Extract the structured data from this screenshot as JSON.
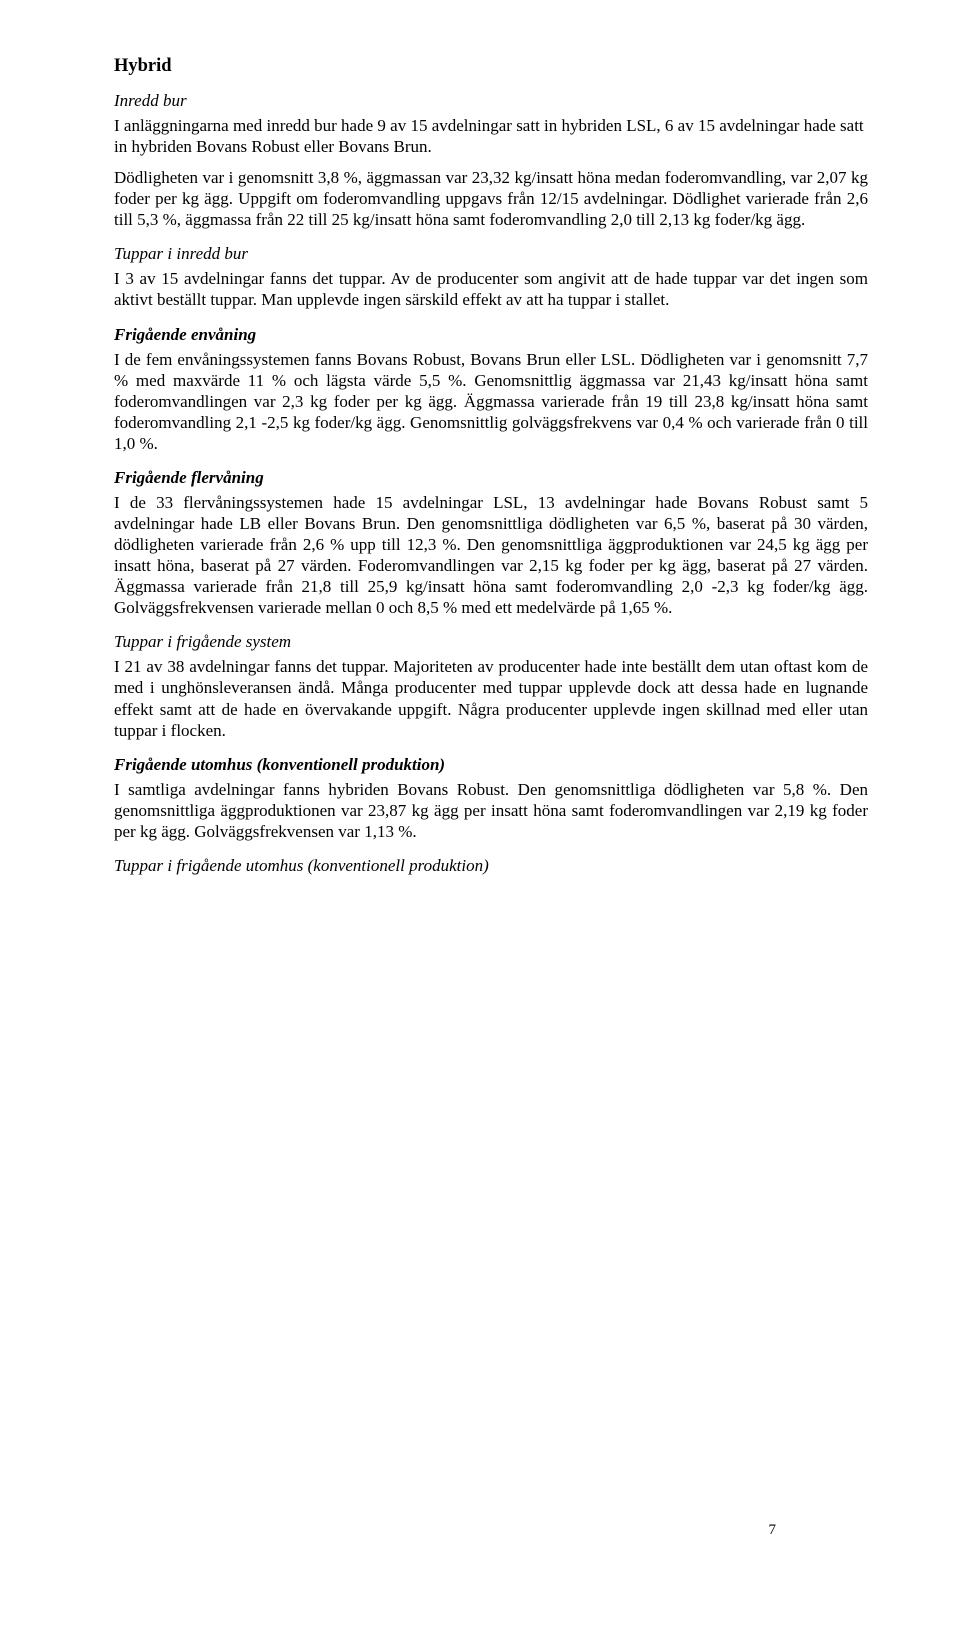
{
  "title": "Hybrid",
  "pageNumber": "7",
  "sections": [
    {
      "heading": "Inredd bur",
      "paragraphs": [
        "I anläggningarna med inredd bur hade 9 av 15 avdelningar satt in hybriden LSL, 6 av 15 avdelningar hade satt in hybriden Bovans Robust eller Bovans Brun.",
        "Dödligheten var i genomsnitt 3,8 %, äggmassan var 23,32 kg/insatt höna medan foderomvandling, var 2,07 kg foder per kg ägg. Uppgift om foderomvandling uppgavs från 12/15 avdelningar. Dödlighet varierade från 2,6 till 5,3 %, äggmassa från 22 till 25 kg/insatt höna samt foderomvandling 2,0 till 2,13 kg foder/kg ägg."
      ]
    },
    {
      "heading": "Tuppar i inredd bur",
      "paragraphs": [
        "I 3 av 15 avdelningar fanns det tuppar. Av de producenter som angivit att de hade tuppar var det ingen som aktivt beställt tuppar. Man upplevde ingen särskild effekt av att ha tuppar i stallet."
      ]
    },
    {
      "heading": "Frigående envåning",
      "paragraphs": [
        "I de fem envåningssystemen fanns Bovans Robust, Bovans Brun eller LSL. Dödligheten var i genomsnitt 7,7 % med maxvärde 11 % och lägsta värde 5,5 %. Genomsnittlig äggmassa var 21,43 kg/insatt höna samt foderomvandlingen var 2,3 kg foder per kg ägg. Äggmassa varierade från 19 till 23,8 kg/insatt höna samt foderomvandling 2,1 -2,5 kg foder/kg ägg. Genomsnittlig golväggsfrekvens var 0,4 % och varierade från 0 till 1,0 %."
      ]
    },
    {
      "heading": "Frigående flervåning",
      "paragraphs": [
        "I de 33 flervåningssystemen hade 15 avdelningar LSL, 13 avdelningar hade Bovans Robust samt 5 avdelningar hade LB eller Bovans Brun. Den genomsnittliga dödligheten var 6,5 %, baserat på 30 värden, dödligheten varierade från 2,6 % upp till 12,3 %. Den genomsnittliga äggproduktionen var 24,5 kg ägg per insatt höna, baserat på 27 värden. Foderomvandlingen var 2,15 kg foder per kg ägg, baserat på 27 värden. Äggmassa varierade från 21,8 till 25,9 kg/insatt höna samt foderomvandling 2,0 -2,3 kg foder/kg ägg. Golväggsfrekvensen varierade mellan 0 och 8,5 % med ett medelvärde på 1,65 %."
      ]
    },
    {
      "heading": "Tuppar i frigående system",
      "paragraphs": [
        "I 21 av 38 avdelningar fanns det tuppar. Majoriteten av producenter hade inte beställt dem utan oftast kom de med i unghönsleveransen ändå. Många producenter med tuppar upplevde dock att dessa hade en lugnande effekt samt att de hade en övervakande uppgift. Några producenter upplevde ingen skillnad med eller utan tuppar i flocken."
      ]
    },
    {
      "heading": "Frigående utomhus (konventionell produktion)",
      "paragraphs": [
        "I samtliga avdelningar fanns hybriden Bovans Robust. Den genomsnittliga dödligheten var 5,8 %. Den genomsnittliga äggproduktionen var 23,87 kg ägg per insatt höna samt foderomvandlingen var 2,19 kg foder per kg ägg. Golväggsfrekvensen var 1,13 %."
      ]
    },
    {
      "heading": "Tuppar i frigående utomhus (konventionell produktion)",
      "paragraphs": []
    }
  ]
}
